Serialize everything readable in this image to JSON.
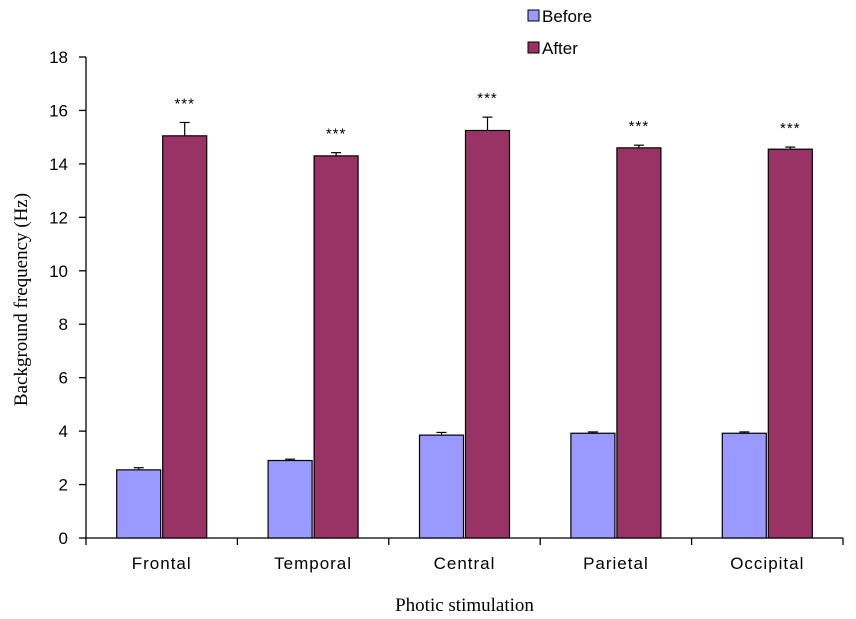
{
  "chart_data": {
    "type": "bar",
    "categories": [
      "Frontal",
      "Temporal",
      "Central",
      "Parietal",
      "Occipital"
    ],
    "series": [
      {
        "name": "Before",
        "color": "#9999FF",
        "values": [
          2.55,
          2.9,
          3.85,
          3.92,
          3.92
        ],
        "errors": [
          0.08,
          0.05,
          0.1,
          0.05,
          0.05
        ]
      },
      {
        "name": "After",
        "color": "#993366",
        "values": [
          15.05,
          14.3,
          15.25,
          14.6,
          14.55
        ],
        "errors": [
          0.5,
          0.12,
          0.5,
          0.1,
          0.08
        ]
      }
    ],
    "annotations": [
      "***",
      "***",
      "***",
      "***",
      "***"
    ],
    "xlabel": "Photic stimulation",
    "ylabel": "Background frequency (Hz)",
    "ylim": [
      0,
      18
    ],
    "yticks": [
      0,
      2,
      4,
      6,
      8,
      10,
      12,
      14,
      16,
      18
    ],
    "grid": false,
    "legend_position": "top-right"
  }
}
